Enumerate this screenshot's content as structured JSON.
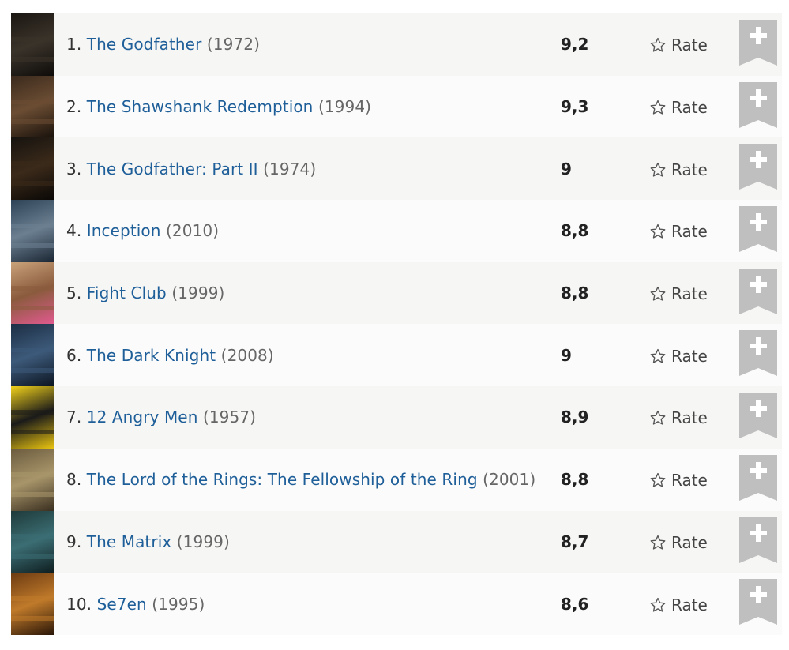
{
  "rate_label": "Rate",
  "colors": {
    "link": "#1f5f99",
    "year": "#666666",
    "row_odd": "#f6f6f5",
    "row_even": "#fbfbfb",
    "watchlist_ribbon": "#bfbfbf",
    "star_outline": "#555555"
  },
  "movies": [
    {
      "rank": "1.",
      "title": "The Godfather",
      "year": "(1972)",
      "rating": "9,2",
      "poster_colors": [
        "#1b1712",
        "#3a332a",
        "#0e0c0a"
      ]
    },
    {
      "rank": "2.",
      "title": "The Shawshank Redemption",
      "year": "(1994)",
      "rating": "9,3",
      "poster_colors": [
        "#3b2a1d",
        "#6b4d33",
        "#1a120c"
      ]
    },
    {
      "rank": "3.",
      "title": "The Godfather: Part II",
      "year": "(1974)",
      "rating": "9",
      "poster_colors": [
        "#16130f",
        "#3b2a1a",
        "#0a0806"
      ]
    },
    {
      "rank": "4.",
      "title": "Inception",
      "year": "(2010)",
      "rating": "8,8",
      "poster_colors": [
        "#2e4256",
        "#6b7f91",
        "#1b2633"
      ]
    },
    {
      "rank": "5.",
      "title": "Fight Club",
      "year": "(1999)",
      "rating": "8,8",
      "poster_colors": [
        "#c9a27a",
        "#8a5b3d",
        "#e05a8e"
      ]
    },
    {
      "rank": "6.",
      "title": "The Dark Knight",
      "year": "(2008)",
      "rating": "9",
      "poster_colors": [
        "#1c2e44",
        "#3d5a7a",
        "#0c1522"
      ]
    },
    {
      "rank": "7.",
      "title": "12 Angry Men",
      "year": "(1957)",
      "rating": "8,9",
      "poster_colors": [
        "#f2d21a",
        "#1a1a1a",
        "#e8c310"
      ]
    },
    {
      "rank": "8.",
      "title": "The Lord of the Rings: The Fellowship of the Ring",
      "year": "(2001)",
      "rating": "8,8",
      "poster_colors": [
        "#6b5b3e",
        "#a8956a",
        "#3a2f20"
      ]
    },
    {
      "rank": "9.",
      "title": "The Matrix",
      "year": "(1999)",
      "rating": "8,7",
      "poster_colors": [
        "#1f3a3a",
        "#3b6e74",
        "#0f1e20"
      ]
    },
    {
      "rank": "10.",
      "title": "Se7en",
      "year": "(1995)",
      "rating": "8,6",
      "poster_colors": [
        "#6b3a12",
        "#c07a2a",
        "#2a1608"
      ]
    }
  ]
}
